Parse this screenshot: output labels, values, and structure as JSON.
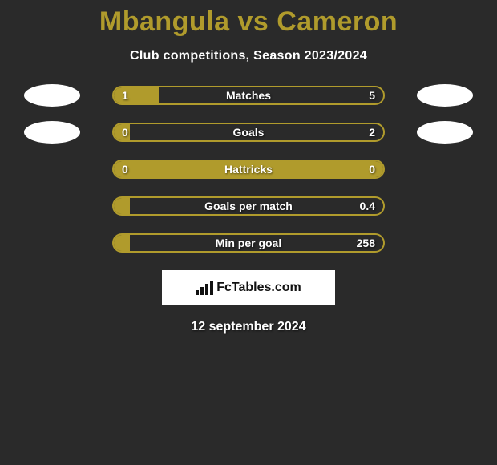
{
  "title": "Mbangula vs Cameron",
  "subtitle": "Club competitions, Season 2023/2024",
  "colors": {
    "accent": "#b09b2c",
    "title": "#b09b2c",
    "text": "#ffffff",
    "background": "#2a2a2a",
    "brand_bg": "#ffffff",
    "brand_text": "#111111"
  },
  "rows": [
    {
      "label": "Matches",
      "left_value": "1",
      "right_value": "5",
      "left_num": 1,
      "right_num": 5,
      "left_pct": 16.67,
      "right_pct": 0,
      "show_left_avatar": true,
      "show_right_avatar": true
    },
    {
      "label": "Goals",
      "left_value": "0",
      "right_value": "2",
      "left_num": 0,
      "right_num": 2,
      "left_pct": 6,
      "right_pct": 0,
      "show_left_avatar": true,
      "show_right_avatar": true
    },
    {
      "label": "Hattricks",
      "left_value": "0",
      "right_value": "0",
      "left_num": 0,
      "right_num": 0,
      "left_pct": 100,
      "right_pct": 0,
      "show_left_avatar": false,
      "show_right_avatar": false
    },
    {
      "label": "Goals per match",
      "left_value": "",
      "right_value": "0.4",
      "left_num": 0,
      "right_num": 0.4,
      "left_pct": 6,
      "right_pct": 0,
      "show_left_avatar": false,
      "show_right_avatar": false
    },
    {
      "label": "Min per goal",
      "left_value": "",
      "right_value": "258",
      "left_num": 0,
      "right_num": 258,
      "left_pct": 6,
      "right_pct": 0,
      "show_left_avatar": false,
      "show_right_avatar": false
    }
  ],
  "brand": {
    "text": "FcTables.com",
    "icon": "bar-chart-icon"
  },
  "date": "12 september 2024"
}
